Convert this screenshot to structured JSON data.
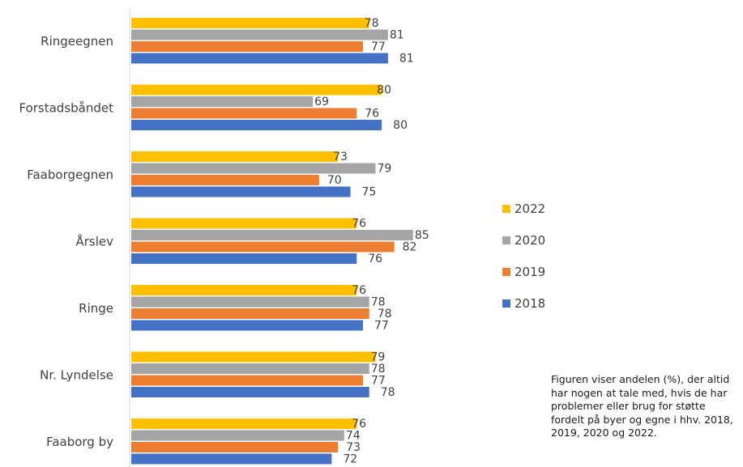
{
  "chart_data": {
    "type": "bar",
    "orientation": "horizontal",
    "categories": [
      "Ringeegnen",
      "Forstadsbåndet",
      "Faaborgegnen",
      "Årslev",
      "Ringe",
      "Nr. Lyndelse",
      "Faaborg by"
    ],
    "series": [
      {
        "name": "2022",
        "color": "#FFC000",
        "values": [
          78,
          80,
          73,
          76,
          76,
          79,
          76
        ]
      },
      {
        "name": "2020",
        "color": "#A5A5A5",
        "values": [
          81,
          69,
          79,
          85,
          78,
          78,
          74
        ]
      },
      {
        "name": "2019",
        "color": "#ED7D31",
        "values": [
          77,
          76,
          70,
          82,
          78,
          77,
          73
        ]
      },
      {
        "name": "2018",
        "color": "#4472C4",
        "values": [
          81,
          80,
          75,
          76,
          77,
          78,
          72
        ]
      }
    ],
    "data_labels": true,
    "xlim": [
      40,
      88
    ],
    "legend_position": "right",
    "grid": false
  },
  "note": "Figuren viser andelen (%), der altid har nogen at tale med, hvis de har problemer eller brug for støtte fordelt på byer og egne i hhv. 2018, 2019, 2020 og 2022."
}
